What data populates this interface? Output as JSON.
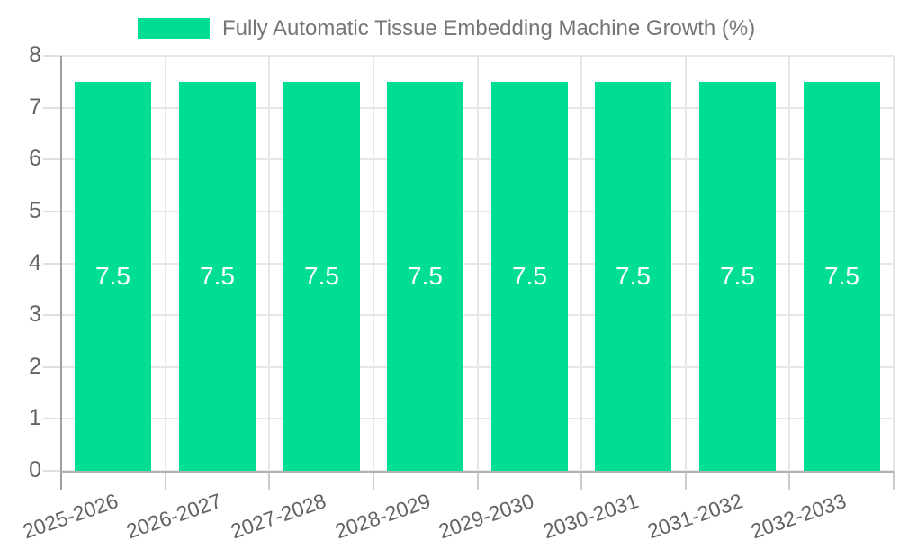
{
  "legend": {
    "label": "Fully Automatic Tissue Embedding Machine Growth (%)",
    "swatch_color": "#00de93"
  },
  "chart_data": {
    "type": "bar",
    "title": "Fully Automatic Tissue Embedding Machine Growth (%)",
    "categories": [
      "2025-2026",
      "2026-2027",
      "2027-2028",
      "2028-2029",
      "2029-2030",
      "2030-2031",
      "2031-2032",
      "2032-2033"
    ],
    "values": [
      7.5,
      7.5,
      7.5,
      7.5,
      7.5,
      7.5,
      7.5,
      7.5
    ],
    "value_labels": [
      "7.5",
      "7.5",
      "7.5",
      "7.5",
      "7.5",
      "7.5",
      "7.5",
      "7.5"
    ],
    "xlabel": "",
    "ylabel": "",
    "ylim": [
      0,
      8
    ],
    "yticks": [
      0,
      1,
      2,
      3,
      4,
      5,
      6,
      7,
      8
    ],
    "grid": true,
    "legend_position": "top",
    "bar_color": "#00de93",
    "value_label_color": "#ffffff",
    "grid_color": "#e6e6e6",
    "axis_label_color": "#636363",
    "legend_text_color": "#757575"
  }
}
